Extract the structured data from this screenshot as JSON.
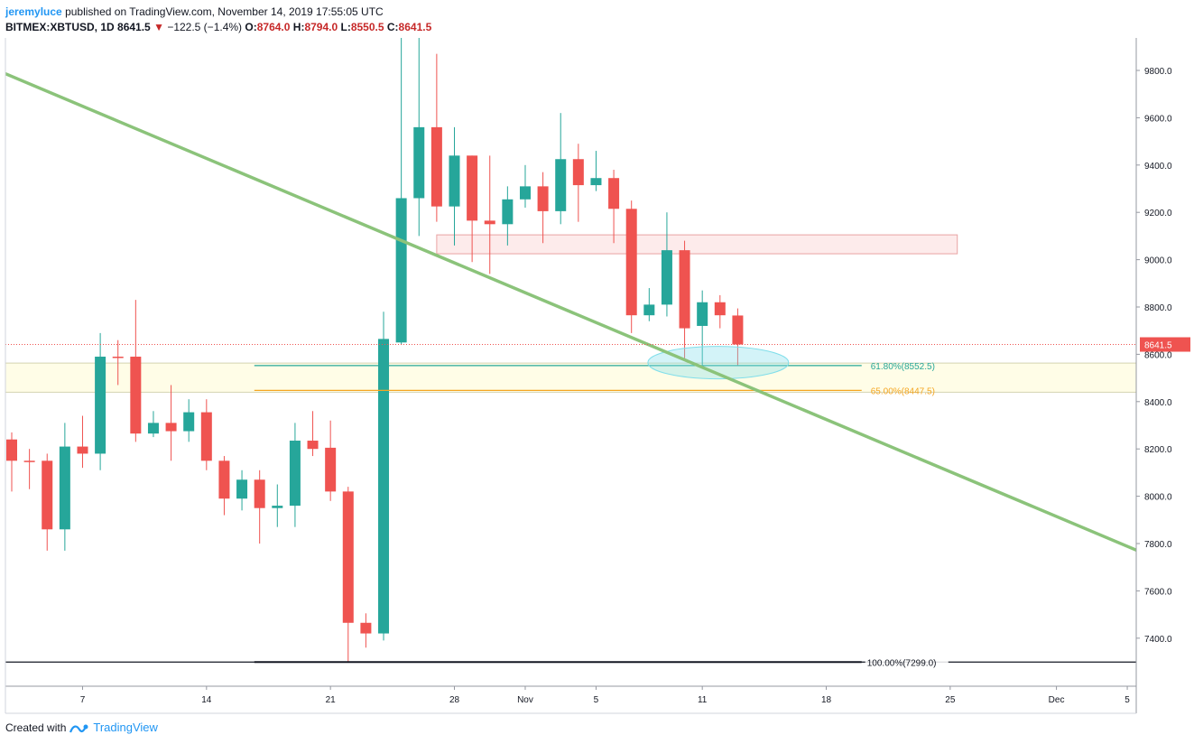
{
  "header": {
    "author": "jeremyluce",
    "published": "published on TradingView.com, November 14, 2019 17:55:05 UTC",
    "symbol": "BITMEX:XBTUSD, 1D",
    "last": "8641.5",
    "change": "−122.5 (−1.4%)",
    "open_label": "O:",
    "open": "8764.0",
    "high_label": "H:",
    "high": "8794.0",
    "low_label": "L:",
    "low": "8550.5",
    "close_label": "C:",
    "close": "8641.5"
  },
  "footer": {
    "created_with": "Created with",
    "brand": "TradingView"
  },
  "colors": {
    "up": "#26a69a",
    "down": "#ef5350",
    "trend": "#8bc37a",
    "fib618": "#26a69a",
    "fib65": "#f5a623",
    "price": "#ef5350"
  },
  "chart_data": {
    "type": "candlestick",
    "ylim": [
      7180,
      9880
    ],
    "y_ticks": [
      7400,
      7600,
      7800,
      8000,
      8200,
      8400,
      8600,
      8800,
      9000,
      9200,
      9400,
      9600,
      9800
    ],
    "y_tick_labels": [
      "7400.0",
      "7600.0",
      "7800.0",
      "8000.0",
      "8200.0",
      "8400.0",
      "8600.0",
      "8800.0",
      "9000.0",
      "9200.0",
      "9400.0",
      "9600.0",
      "9800.0"
    ],
    "x_start_day": 0,
    "x_ticks": [
      {
        "day": 4,
        "label": "7"
      },
      {
        "day": 11,
        "label": "14"
      },
      {
        "day": 18,
        "label": "21"
      },
      {
        "day": 25,
        "label": "28"
      },
      {
        "day": 29,
        "label": "Nov"
      },
      {
        "day": 33,
        "label": "5"
      },
      {
        "day": 39,
        "label": "11"
      },
      {
        "day": 46,
        "label": "18"
      },
      {
        "day": 53,
        "label": "25"
      },
      {
        "day": 59,
        "label": "Dec"
      },
      {
        "day": 63,
        "label": "5"
      }
    ],
    "candles": [
      {
        "o": 8240,
        "h": 8270,
        "l": 8020,
        "c": 8150
      },
      {
        "o": 8150,
        "h": 8200,
        "l": 8030,
        "c": 8145
      },
      {
        "o": 8150,
        "h": 8180,
        "l": 7770,
        "c": 7860
      },
      {
        "o": 7860,
        "h": 8310,
        "l": 7770,
        "c": 8210
      },
      {
        "o": 8210,
        "h": 8340,
        "l": 8120,
        "c": 8180
      },
      {
        "o": 8180,
        "h": 8690,
        "l": 8110,
        "c": 8590
      },
      {
        "o": 8590,
        "h": 8660,
        "l": 8470,
        "c": 8585
      },
      {
        "o": 8590,
        "h": 8830,
        "l": 8230,
        "c": 8265
      },
      {
        "o": 8265,
        "h": 8360,
        "l": 8250,
        "c": 8310
      },
      {
        "o": 8310,
        "h": 8470,
        "l": 8150,
        "c": 8275
      },
      {
        "o": 8275,
        "h": 8410,
        "l": 8230,
        "c": 8355
      },
      {
        "o": 8355,
        "h": 8410,
        "l": 8110,
        "c": 8150
      },
      {
        "o": 8150,
        "h": 8170,
        "l": 7920,
        "c": 7990
      },
      {
        "o": 7990,
        "h": 8110,
        "l": 7940,
        "c": 8070
      },
      {
        "o": 8070,
        "h": 8110,
        "l": 7800,
        "c": 7950
      },
      {
        "o": 7950,
        "h": 8050,
        "l": 7870,
        "c": 7960
      },
      {
        "o": 7960,
        "h": 8310,
        "l": 7870,
        "c": 8235
      },
      {
        "o": 8235,
        "h": 8360,
        "l": 8170,
        "c": 8200
      },
      {
        "o": 8205,
        "h": 8320,
        "l": 7980,
        "c": 8020
      },
      {
        "o": 8020,
        "h": 8040,
        "l": 7300,
        "c": 7465
      },
      {
        "o": 7465,
        "h": 7505,
        "l": 7360,
        "c": 7420
      },
      {
        "o": 7420,
        "h": 8780,
        "l": 7390,
        "c": 8665
      },
      {
        "o": 8650,
        "h": 10000,
        "l": 8640,
        "c": 9260
      },
      {
        "o": 9260,
        "h": 10540,
        "l": 9100,
        "c": 9560
      },
      {
        "o": 9560,
        "h": 9870,
        "l": 9160,
        "c": 9225
      },
      {
        "o": 9225,
        "h": 9560,
        "l": 9060,
        "c": 9440
      },
      {
        "o": 9440,
        "h": 9440,
        "l": 8990,
        "c": 9165
      },
      {
        "o": 9165,
        "h": 9440,
        "l": 8940,
        "c": 9150
      },
      {
        "o": 9150,
        "h": 9310,
        "l": 9060,
        "c": 9255
      },
      {
        "o": 9255,
        "h": 9400,
        "l": 9220,
        "c": 9310
      },
      {
        "o": 9310,
        "h": 9370,
        "l": 9070,
        "c": 9205
      },
      {
        "o": 9205,
        "h": 9620,
        "l": 9150,
        "c": 9425
      },
      {
        "o": 9425,
        "h": 9490,
        "l": 9160,
        "c": 9315
      },
      {
        "o": 9315,
        "h": 9460,
        "l": 9290,
        "c": 9345
      },
      {
        "o": 9345,
        "h": 9380,
        "l": 9070,
        "c": 9215
      },
      {
        "o": 9215,
        "h": 9250,
        "l": 8690,
        "c": 8765
      },
      {
        "o": 8765,
        "h": 8880,
        "l": 8740,
        "c": 8810
      },
      {
        "o": 8810,
        "h": 9200,
        "l": 8760,
        "c": 9040
      },
      {
        "o": 9040,
        "h": 9080,
        "l": 8580,
        "c": 8710
      },
      {
        "o": 8720,
        "h": 8870,
        "l": 8550,
        "c": 8820
      },
      {
        "o": 8820,
        "h": 8850,
        "l": 8710,
        "c": 8765
      },
      {
        "o": 8764,
        "h": 8794,
        "l": 8550.5,
        "c": 8641.5
      }
    ],
    "trendline": {
      "from": {
        "day": 0,
        "price": 9780
      },
      "to": {
        "day": 64,
        "price": 7760
      }
    },
    "resistance_zone": {
      "day_start": 24,
      "day_end": 53.4,
      "price_low": 9025,
      "price_high": 9105
    },
    "support_zone": {
      "price_low": 8440,
      "price_high": 8563
    },
    "ellipse": {
      "day": 39.9,
      "price": 8565
    },
    "fib_levels": [
      {
        "price": 8552.5,
        "label": "61.80%(8552.5)",
        "color": "#26a69a",
        "day_start": 13.7,
        "day_end": 48
      },
      {
        "price": 8447.5,
        "label": "65.00%(8447.5)",
        "color": "#f5a623",
        "day_start": 13.7,
        "day_end": 48
      },
      {
        "price": 7299.0,
        "label": "100.00%(7299.0)",
        "color": "#131722",
        "day_start": 13.7,
        "day_end": 48
      }
    ],
    "baseline_price": 7299.0,
    "last_price": 8641.5,
    "last_price_label": "8641.5"
  }
}
